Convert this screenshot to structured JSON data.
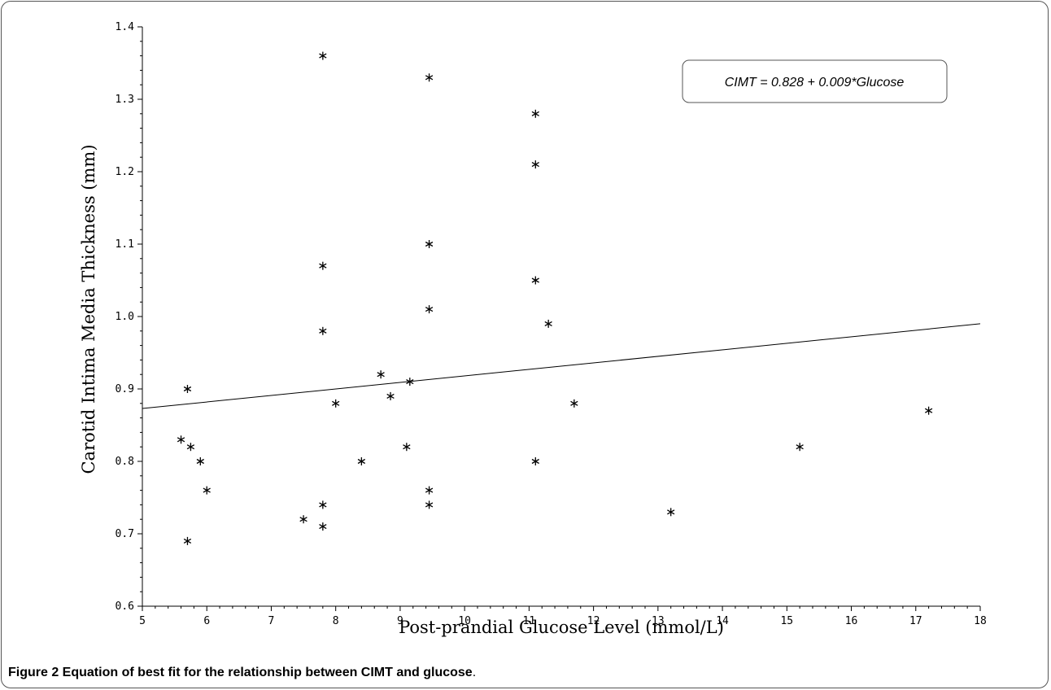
{
  "chart_data": {
    "type": "scatter",
    "title": "",
    "xlabel": "Post-prandial Glucose Level (mmol/L)",
    "ylabel": "Carotid Intima Media Thickness (mm)",
    "xlim": [
      5,
      18
    ],
    "ylim": [
      0.6,
      1.4
    ],
    "xticks": [
      5,
      6,
      7,
      8,
      9,
      10,
      11,
      12,
      13,
      14,
      15,
      16,
      17,
      18
    ],
    "yticks": [
      "0.6",
      "0.7",
      "0.8",
      "0.9",
      "1.0",
      "1.1",
      "1.2",
      "1.3",
      "1.4"
    ],
    "marker": "*",
    "points": [
      {
        "x": 5.6,
        "y": 0.83
      },
      {
        "x": 5.7,
        "y": 0.9
      },
      {
        "x": 5.75,
        "y": 0.82
      },
      {
        "x": 5.9,
        "y": 0.8
      },
      {
        "x": 6.0,
        "y": 0.76
      },
      {
        "x": 5.7,
        "y": 0.69
      },
      {
        "x": 7.5,
        "y": 0.72
      },
      {
        "x": 7.8,
        "y": 0.74
      },
      {
        "x": 7.8,
        "y": 0.71
      },
      {
        "x": 7.8,
        "y": 0.98
      },
      {
        "x": 7.8,
        "y": 1.07
      },
      {
        "x": 7.8,
        "y": 1.36
      },
      {
        "x": 8.0,
        "y": 0.88
      },
      {
        "x": 8.4,
        "y": 0.8
      },
      {
        "x": 8.7,
        "y": 0.92
      },
      {
        "x": 8.85,
        "y": 0.89
      },
      {
        "x": 9.1,
        "y": 0.82
      },
      {
        "x": 9.15,
        "y": 0.91
      },
      {
        "x": 9.45,
        "y": 0.76
      },
      {
        "x": 9.45,
        "y": 0.74
      },
      {
        "x": 9.45,
        "y": 1.01
      },
      {
        "x": 9.45,
        "y": 1.1
      },
      {
        "x": 9.45,
        "y": 1.33
      },
      {
        "x": 11.1,
        "y": 0.8
      },
      {
        "x": 11.1,
        "y": 1.05
      },
      {
        "x": 11.1,
        "y": 1.21
      },
      {
        "x": 11.1,
        "y": 1.28
      },
      {
        "x": 11.3,
        "y": 0.99
      },
      {
        "x": 11.7,
        "y": 0.88
      },
      {
        "x": 13.2,
        "y": 0.73
      },
      {
        "x": 15.2,
        "y": 0.82
      },
      {
        "x": 17.2,
        "y": 0.87
      }
    ],
    "fit_line": {
      "intercept": 0.828,
      "slope": 0.009
    },
    "annotation": "CIMT = 0.828 + 0.009*Glucose"
  },
  "caption": {
    "label": "Figure 2",
    "text": " Equation of best fit for the relationship between CIMT and glucose",
    "end": "."
  }
}
